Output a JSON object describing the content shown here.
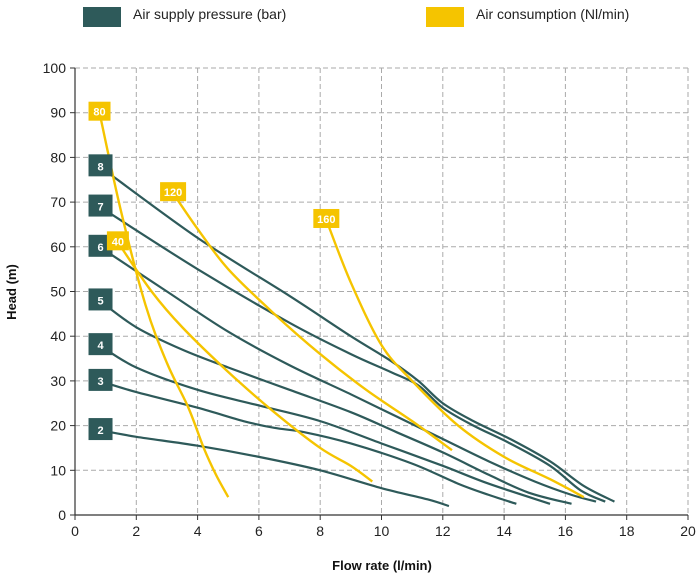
{
  "legend": [
    {
      "label": "Air supply pressure (bar)",
      "color": "#2e5a5a"
    },
    {
      "label": "Air consumption (Nl/min)",
      "color": "#f5c400"
    }
  ],
  "chart_data": {
    "type": "line",
    "title": "",
    "xlabel": "Flow rate (l/min)",
    "ylabel": "Head (m)",
    "xlim": [
      0,
      20
    ],
    "ylim": [
      0,
      100
    ],
    "xticks": [
      0,
      2,
      4,
      6,
      8,
      10,
      12,
      14,
      16,
      18,
      20
    ],
    "yticks": [
      0,
      10,
      20,
      30,
      40,
      50,
      60,
      70,
      80,
      90,
      100
    ],
    "grid": true,
    "legend_position": "top",
    "pressure_series": [
      {
        "label": "8",
        "points": [
          [
            0.8,
            78
          ],
          [
            4,
            62
          ],
          [
            7,
            49
          ],
          [
            9,
            40
          ],
          [
            10.3,
            34.5
          ],
          [
            11.2,
            30
          ],
          [
            12,
            25
          ],
          [
            13,
            21
          ],
          [
            14.2,
            17
          ],
          [
            15.5,
            12
          ],
          [
            16.6,
            6.5
          ],
          [
            17.6,
            3
          ]
        ]
      },
      {
        "label": "7",
        "points": [
          [
            0.8,
            69
          ],
          [
            4,
            55
          ],
          [
            7,
            43
          ],
          [
            9,
            36
          ],
          [
            10.3,
            32
          ],
          [
            11.2,
            29
          ],
          [
            12,
            24
          ],
          [
            13,
            20
          ],
          [
            14.2,
            16
          ],
          [
            15.5,
            11
          ],
          [
            16.5,
            5.5
          ],
          [
            17.3,
            3
          ]
        ]
      },
      {
        "label": "6",
        "points": [
          [
            0.8,
            60
          ],
          [
            3,
            50
          ],
          [
            5,
            41
          ],
          [
            7,
            33.5
          ],
          [
            9,
            27
          ],
          [
            10.5,
            22
          ],
          [
            12,
            17
          ],
          [
            13.5,
            12
          ],
          [
            15,
            7.5
          ],
          [
            16.2,
            4.5
          ],
          [
            17,
            3
          ]
        ]
      },
      {
        "label": "5",
        "points": [
          [
            0.8,
            48
          ],
          [
            2,
            42
          ],
          [
            3.5,
            37
          ],
          [
            5,
            33
          ],
          [
            7,
            28
          ],
          [
            9,
            23
          ],
          [
            10.5,
            18.5
          ],
          [
            12,
            14
          ],
          [
            13.5,
            9
          ],
          [
            14.8,
            5
          ],
          [
            16.2,
            2.5
          ]
        ]
      },
      {
        "label": "4",
        "points": [
          [
            0.8,
            38
          ],
          [
            2,
            33
          ],
          [
            4,
            28
          ],
          [
            6,
            24.5
          ],
          [
            8,
            21
          ],
          [
            10,
            16
          ],
          [
            12,
            11
          ],
          [
            13.5,
            7
          ],
          [
            15.5,
            2.5
          ]
        ]
      },
      {
        "label": "3",
        "points": [
          [
            0.8,
            30
          ],
          [
            2,
            27.5
          ],
          [
            4,
            24
          ],
          [
            5.5,
            21
          ],
          [
            6.5,
            19.5
          ],
          [
            7.5,
            18.5
          ],
          [
            9,
            16
          ],
          [
            11,
            11.5
          ],
          [
            12.5,
            7
          ],
          [
            13.5,
            4.5
          ],
          [
            14.4,
            2.5
          ]
        ]
      },
      {
        "label": "2",
        "points": [
          [
            0.8,
            19
          ],
          [
            2,
            17.5
          ],
          [
            4,
            15.5
          ],
          [
            6,
            13
          ],
          [
            8,
            10
          ],
          [
            10,
            6
          ],
          [
            11.5,
            3.5
          ],
          [
            12.2,
            2
          ]
        ]
      }
    ],
    "consumption_series": [
      {
        "label": "80",
        "points": [
          [
            0.8,
            90
          ],
          [
            1.5,
            68
          ],
          [
            2.3,
            47
          ],
          [
            3,
            34
          ],
          [
            3.7,
            24
          ],
          [
            4.2,
            15
          ],
          [
            4.6,
            9
          ],
          [
            5,
            4
          ]
        ]
      },
      {
        "label": "40",
        "points": [
          [
            1.4,
            61
          ],
          [
            2.5,
            50
          ],
          [
            3.5,
            42
          ],
          [
            5,
            32
          ],
          [
            6.5,
            23
          ],
          [
            8,
            15
          ],
          [
            9,
            11
          ],
          [
            9.7,
            7.5
          ]
        ]
      },
      {
        "label": "120",
        "points": [
          [
            3.2,
            72
          ],
          [
            4,
            64
          ],
          [
            5,
            55
          ],
          [
            6.5,
            45
          ],
          [
            8,
            36
          ],
          [
            9.5,
            28
          ],
          [
            11,
            21
          ],
          [
            12.3,
            14.5
          ]
        ]
      },
      {
        "label": "160",
        "points": [
          [
            8.2,
            66
          ],
          [
            9,
            52
          ],
          [
            10,
            38
          ],
          [
            11,
            30
          ],
          [
            12.5,
            20
          ],
          [
            14,
            13
          ],
          [
            15.5,
            8
          ],
          [
            16.6,
            4
          ]
        ]
      }
    ]
  }
}
